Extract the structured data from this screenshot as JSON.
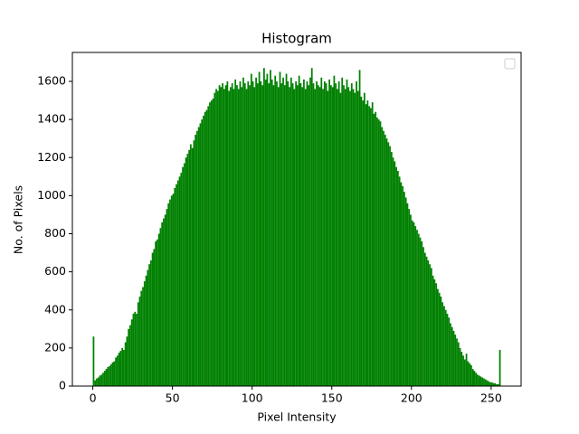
{
  "chart_data": {
    "type": "histogram",
    "title": "Histogram",
    "xlabel": "Pixel Intensity",
    "ylabel": "No. of Pixels",
    "color": "#008000",
    "bins": [
      0,
      1,
      2,
      3,
      4,
      5,
      6,
      7,
      8,
      9,
      10,
      11,
      12,
      13,
      14,
      15,
      16,
      17,
      18,
      19,
      20,
      21,
      22,
      23,
      24,
      25,
      26,
      27,
      28,
      29,
      30,
      31,
      32,
      33,
      34,
      35,
      36,
      37,
      38,
      39,
      40,
      41,
      42,
      43,
      44,
      45,
      46,
      47,
      48,
      49,
      50,
      51,
      52,
      53,
      54,
      55,
      56,
      57,
      58,
      59,
      60,
      61,
      62,
      63,
      64,
      65,
      66,
      67,
      68,
      69,
      70,
      71,
      72,
      73,
      74,
      75,
      76,
      77,
      78,
      79,
      80,
      81,
      82,
      83,
      84,
      85,
      86,
      87,
      88,
      89,
      90,
      91,
      92,
      93,
      94,
      95,
      96,
      97,
      98,
      99,
      100,
      101,
      102,
      103,
      104,
      105,
      106,
      107,
      108,
      109,
      110,
      111,
      112,
      113,
      114,
      115,
      116,
      117,
      118,
      119,
      120,
      121,
      122,
      123,
      124,
      125,
      126,
      127,
      128,
      129,
      130,
      131,
      132,
      133,
      134,
      135,
      136,
      137,
      138,
      139,
      140,
      141,
      142,
      143,
      144,
      145,
      146,
      147,
      148,
      149,
      150,
      151,
      152,
      153,
      154,
      155,
      156,
      157,
      158,
      159,
      160,
      161,
      162,
      163,
      164,
      165,
      166,
      167,
      168,
      169,
      170,
      171,
      172,
      173,
      174,
      175,
      176,
      177,
      178,
      179,
      180,
      181,
      182,
      183,
      184,
      185,
      186,
      187,
      188,
      189,
      190,
      191,
      192,
      193,
      194,
      195,
      196,
      197,
      198,
      199,
      200,
      201,
      202,
      203,
      204,
      205,
      206,
      207,
      208,
      209,
      210,
      211,
      212,
      213,
      214,
      215,
      216,
      217,
      218,
      219,
      220,
      221,
      222,
      223,
      224,
      225,
      226,
      227,
      228,
      229,
      230,
      231,
      232,
      233,
      234,
      235,
      236,
      237,
      238,
      239,
      240,
      241,
      242,
      243,
      244,
      245,
      246,
      247,
      248,
      249,
      250,
      251,
      252,
      253,
      254,
      255,
      256
    ],
    "counts": [
      260,
      30,
      40,
      45,
      55,
      60,
      70,
      80,
      90,
      100,
      105,
      115,
      125,
      130,
      150,
      160,
      175,
      185,
      200,
      190,
      230,
      260,
      300,
      320,
      350,
      380,
      390,
      380,
      440,
      470,
      500,
      520,
      550,
      580,
      610,
      640,
      660,
      700,
      720,
      760,
      770,
      800,
      830,
      860,
      880,
      900,
      930,
      960,
      980,
      1000,
      1010,
      1040,
      1060,
      1080,
      1100,
      1120,
      1150,
      1170,
      1200,
      1220,
      1240,
      1270,
      1250,
      1290,
      1320,
      1340,
      1360,
      1380,
      1400,
      1420,
      1440,
      1450,
      1470,
      1490,
      1500,
      1510,
      1540,
      1560,
      1550,
      1580,
      1570,
      1590,
      1560,
      1580,
      1600,
      1550,
      1570,
      1590,
      1560,
      1610,
      1580,
      1560,
      1600,
      1570,
      1620,
      1590,
      1560,
      1600,
      1580,
      1640,
      1600,
      1570,
      1620,
      1590,
      1650,
      1600,
      1580,
      1670,
      1610,
      1640,
      1590,
      1660,
      1610,
      1580,
      1630,
      1600,
      1570,
      1650,
      1590,
      1620,
      1580,
      1640,
      1600,
      1570,
      1620,
      1590,
      1560,
      1600,
      1580,
      1630,
      1590,
      1570,
      1610,
      1560,
      1600,
      1580,
      1620,
      1670,
      1590,
      1560,
      1600,
      1580,
      1570,
      1620,
      1560,
      1600,
      1590,
      1550,
      1610,
      1580,
      1570,
      1630,
      1590,
      1560,
      1600,
      1540,
      1620,
      1580,
      1560,
      1610,
      1570,
      1550,
      1590,
      1560,
      1540,
      1600,
      1550,
      1660,
      1520,
      1500,
      1540,
      1480,
      1500,
      1470,
      1460,
      1490,
      1430,
      1440,
      1410,
      1400,
      1390,
      1360,
      1340,
      1320,
      1300,
      1280,
      1260,
      1230,
      1200,
      1180,
      1150,
      1130,
      1100,
      1070,
      1050,
      1020,
      990,
      960,
      930,
      900,
      870,
      860,
      840,
      820,
      800,
      780,
      760,
      730,
      700,
      680,
      660,
      640,
      620,
      580,
      560,
      540,
      510,
      490,
      470,
      440,
      420,
      400,
      380,
      360,
      330,
      310,
      290,
      270,
      250,
      230,
      200,
      180,
      160,
      140,
      170,
      130,
      120,
      110,
      90,
      80,
      70,
      60,
      55,
      50,
      45,
      40,
      35,
      30,
      25,
      20,
      20,
      15,
      15,
      10,
      10,
      190
    ],
    "xlim": [
      -12.8,
      268.8
    ],
    "ylim": [
      0,
      1752
    ],
    "xticks": [
      0,
      50,
      100,
      150,
      200,
      250
    ],
    "yticks": [
      0,
      200,
      400,
      600,
      800,
      1000,
      1200,
      1400,
      1600
    ]
  }
}
